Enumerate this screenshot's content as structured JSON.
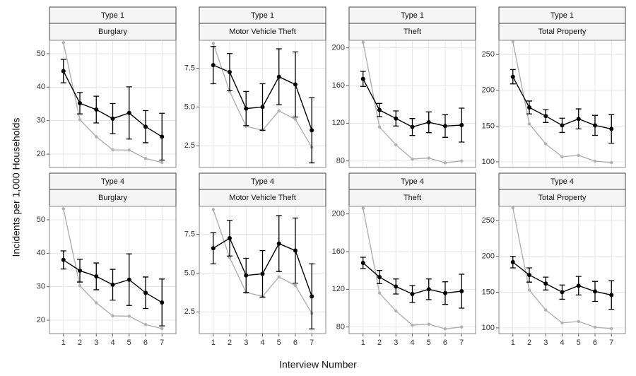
{
  "xlabel": "Interview Number",
  "ylabel": "Incidents per 1,000 Households",
  "chart_data": [
    {
      "type": "line",
      "title": "Type 1",
      "subtitle": "Burglary",
      "x": [
        1,
        2,
        3,
        4,
        5,
        6,
        7
      ],
      "xlim": [
        0.15,
        7.85
      ],
      "xticks": [
        1,
        2,
        3,
        4,
        5,
        6,
        7
      ],
      "ylim": [
        16,
        54
      ],
      "yticks": [
        20,
        30,
        40,
        50
      ],
      "grid": true,
      "series": [
        {
          "color": "#000000",
          "values": [
            44.8,
            35.2,
            33.3,
            30.6,
            32.3,
            28.2,
            25.2
          ],
          "error": [
            3.5,
            3.2,
            4,
            4.5,
            7.8,
            4.8,
            7
          ]
        },
        {
          "color": "#b0b0b0",
          "values": [
            53.3,
            30.3,
            25.2,
            21.3,
            21.2,
            18.7,
            17.5
          ]
        }
      ]
    },
    {
      "type": "line",
      "title": "Type 1",
      "subtitle": "Motor Vehicle Theft",
      "x": [
        1,
        2,
        3,
        4,
        5,
        6,
        7
      ],
      "xlim": [
        0.15,
        7.85
      ],
      "xticks": [
        1,
        2,
        3,
        4,
        5,
        6,
        7
      ],
      "ylim": [
        1.1,
        9.3
      ],
      "yticks": [
        2.5,
        {
          "value": 5,
          "label": "5.0"
        },
        7.5
      ],
      "grid": true,
      "series": [
        {
          "color": "#000000",
          "values": [
            7.7,
            7.25,
            4.9,
            5.0,
            6.95,
            6.45,
            3.5
          ],
          "error": [
            1.2,
            1.2,
            1.1,
            1.5,
            1.8,
            2.1,
            2.1
          ]
        },
        {
          "color": "#b0b0b0",
          "values": [
            9.1,
            6.0,
            3.75,
            3.5,
            4.75,
            4.2,
            2.4
          ]
        }
      ]
    },
    {
      "type": "line",
      "title": "Type 1",
      "subtitle": "Theft",
      "x": [
        1,
        2,
        3,
        4,
        5,
        6,
        7
      ],
      "xlim": [
        0.15,
        7.85
      ],
      "xticks": [
        1,
        2,
        3,
        4,
        5,
        6,
        7
      ],
      "ylim": [
        73,
        208
      ],
      "yticks": [
        80,
        120,
        160,
        200
      ],
      "grid": true,
      "series": [
        {
          "color": "#000000",
          "values": [
            167,
            134,
            125,
            116,
            121,
            117,
            118
          ],
          "error": [
            8,
            7,
            8,
            9,
            11,
            12,
            18
          ]
        },
        {
          "color": "#b0b0b0",
          "values": [
            206,
            116,
            97,
            82,
            83,
            78,
            80
          ]
        }
      ]
    },
    {
      "type": "line",
      "title": "Type 1",
      "subtitle": "Total Property",
      "x": [
        1,
        2,
        3,
        4,
        5,
        6,
        7
      ],
      "xlim": [
        0.15,
        7.85
      ],
      "xticks": [
        1,
        2,
        3,
        4,
        5,
        6,
        7
      ],
      "ylim": [
        92,
        270
      ],
      "yticks": [
        100,
        150,
        200,
        250
      ],
      "grid": true,
      "series": [
        {
          "color": "#000000",
          "values": [
            219,
            176,
            164,
            151,
            160,
            151,
            146
          ],
          "error": [
            10,
            9,
            9,
            10,
            14,
            14,
            20
          ]
        },
        {
          "color": "#b0b0b0",
          "values": [
            268,
            153,
            125,
            107,
            109,
            101,
            99
          ]
        }
      ]
    },
    {
      "type": "line",
      "title": "Type 4",
      "subtitle": "Burglary",
      "x": [
        1,
        2,
        3,
        4,
        5,
        6,
        7
      ],
      "xlim": [
        0.15,
        7.85
      ],
      "xticks": [
        1,
        2,
        3,
        4,
        5,
        6,
        7
      ],
      "ylim": [
        16,
        54
      ],
      "yticks": [
        20,
        30,
        40,
        50
      ],
      "grid": true,
      "series": [
        {
          "color": "#000000",
          "values": [
            38,
            34.8,
            33.1,
            30.6,
            32.1,
            28.2,
            25.3
          ],
          "error": [
            2.7,
            3.4,
            4,
            4.6,
            7.7,
            4.7,
            7
          ]
        },
        {
          "color": "#b0b0b0",
          "values": [
            53.3,
            30.3,
            25.2,
            21.3,
            21.2,
            18.7,
            17.5
          ]
        }
      ]
    },
    {
      "type": "line",
      "title": "Type 4",
      "subtitle": "Motor Vehicle Theft",
      "x": [
        1,
        2,
        3,
        4,
        5,
        6,
        7
      ],
      "xlim": [
        0.15,
        7.85
      ],
      "xticks": [
        1,
        2,
        3,
        4,
        5,
        6,
        7
      ],
      "ylim": [
        1.1,
        9.3
      ],
      "yticks": [
        2.5,
        {
          "value": 5,
          "label": "5.0"
        },
        7.5
      ],
      "grid": true,
      "series": [
        {
          "color": "#000000",
          "values": [
            6.6,
            7.25,
            4.85,
            4.95,
            6.9,
            6.45,
            3.5
          ],
          "error": [
            1.0,
            1.15,
            1.1,
            1.5,
            1.8,
            2.1,
            2.1
          ]
        },
        {
          "color": "#b0b0b0",
          "values": [
            9.1,
            6.0,
            3.75,
            3.5,
            4.75,
            4.2,
            2.4
          ]
        }
      ]
    },
    {
      "type": "line",
      "title": "Type 4",
      "subtitle": "Theft",
      "x": [
        1,
        2,
        3,
        4,
        5,
        6,
        7
      ],
      "xlim": [
        0.15,
        7.85
      ],
      "xticks": [
        1,
        2,
        3,
        4,
        5,
        6,
        7
      ],
      "ylim": [
        73,
        208
      ],
      "yticks": [
        80,
        120,
        160,
        200
      ],
      "grid": true,
      "series": [
        {
          "color": "#000000",
          "values": [
            148,
            133,
            123,
            115,
            120,
            116,
            118
          ],
          "error": [
            6,
            7,
            8,
            9,
            11,
            12,
            18
          ]
        },
        {
          "color": "#b0b0b0",
          "values": [
            206,
            116,
            97,
            82,
            83,
            78,
            80
          ]
        }
      ]
    },
    {
      "type": "line",
      "title": "Type 4",
      "subtitle": "Total Property",
      "x": [
        1,
        2,
        3,
        4,
        5,
        6,
        7
      ],
      "xlim": [
        0.15,
        7.85
      ],
      "xticks": [
        1,
        2,
        3,
        4,
        5,
        6,
        7
      ],
      "ylim": [
        92,
        270
      ],
      "yticks": [
        100,
        150,
        200,
        250
      ],
      "grid": true,
      "series": [
        {
          "color": "#000000",
          "values": [
            192,
            174,
            162,
            150,
            159,
            151,
            146
          ],
          "error": [
            8,
            10,
            9,
            10,
            13,
            14,
            20
          ]
        },
        {
          "color": "#b0b0b0",
          "values": [
            268,
            153,
            125,
            107,
            109,
            101,
            99
          ]
        }
      ]
    }
  ]
}
